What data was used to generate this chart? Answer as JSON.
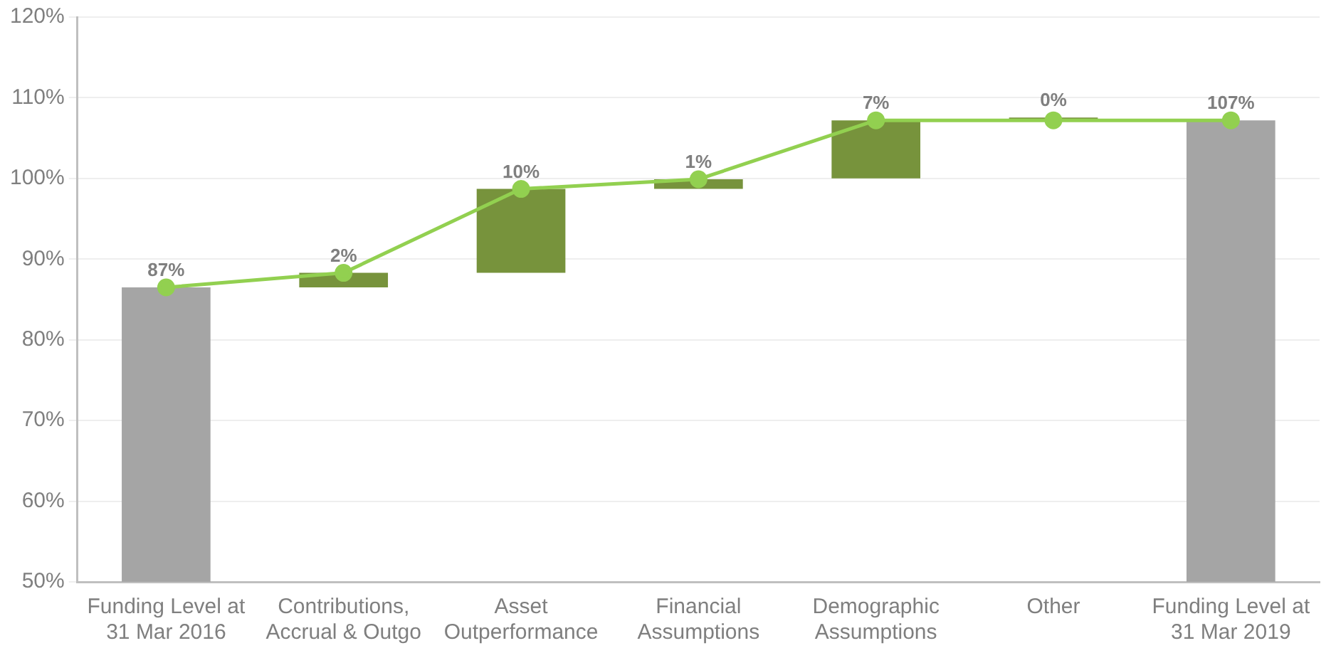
{
  "chart_data": {
    "type": "bar",
    "categories": [
      "Funding Level at 31 Mar 2016",
      "Contributions, Accrual & Outgo",
      "Asset Outperformance",
      "Financial Assumptions",
      "Demographic Assumptions",
      "Other",
      "Funding Level at 31 Mar 2019"
    ],
    "series": [
      {
        "colors": [
          "#a5a5a5",
          "#77933c",
          "#77933c",
          "#77933c",
          "#77933c",
          "#77933c",
          "#a5a5a5"
        ],
        "values": [
          86.5,
          1.8,
          10.4,
          1.2,
          7.2,
          0,
          107.2
        ],
        "base": [
          null,
          86.5,
          88.3,
          98.7,
          100,
          107.2,
          null
        ],
        "value_labels": [
          "87%",
          "2%",
          "10%",
          "1%",
          "7%",
          "0%",
          "107%"
        ]
      },
      {
        "type": "line",
        "color": "#92d050",
        "values": [
          86.5,
          88.3,
          98.7,
          99.9,
          107.2,
          107.2,
          107.2
        ],
        "marker": "circle",
        "line_style": "solid"
      }
    ],
    "ylim": [
      50,
      120
    ],
    "yticks": [
      {
        "value": 50,
        "label": "50%"
      },
      {
        "value": 60,
        "label": "60%"
      },
      {
        "value": 70,
        "label": "70%"
      },
      {
        "value": 80,
        "label": "80%"
      },
      {
        "value": 90,
        "label": "90%"
      },
      {
        "value": 100,
        "label": "100%"
      },
      {
        "value": 110,
        "label": "110%"
      },
      {
        "value": 120,
        "label": "120%"
      }
    ],
    "grid": "y"
  }
}
